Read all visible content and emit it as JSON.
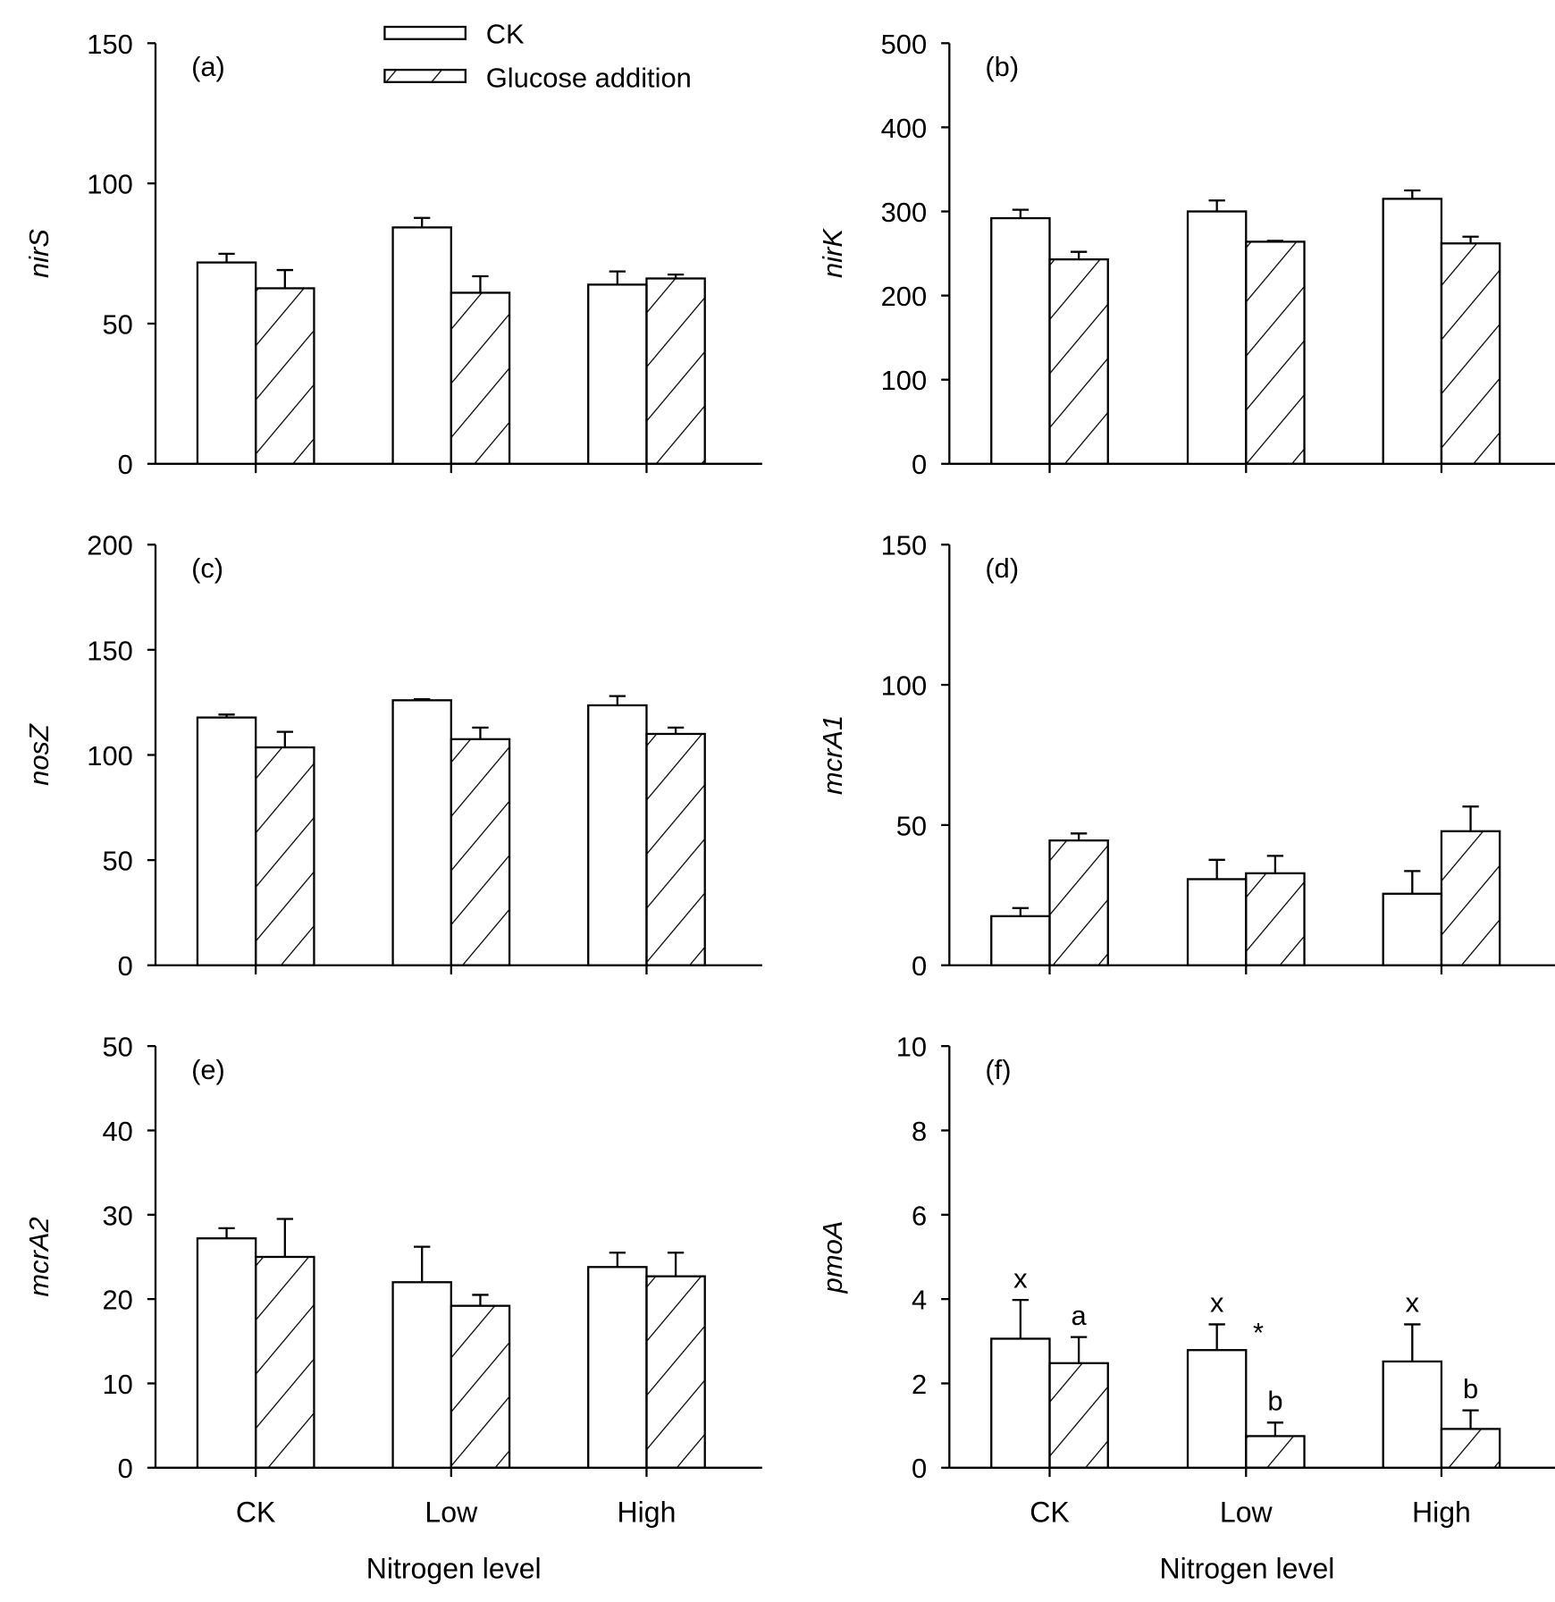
{
  "chart_data": {
    "type": "bar",
    "legend": {
      "position": "top",
      "entries": [
        "CK",
        "Glucose addition"
      ]
    },
    "categories": [
      "CK",
      "Low",
      "High"
    ],
    "xlabel": "Nitrogen level",
    "panels": [
      {
        "label": "(a)",
        "ylabel": "nirS",
        "ylim": [
          0,
          150
        ],
        "yticks": [
          0,
          50,
          100,
          150
        ],
        "series": [
          {
            "name": "CK",
            "values": [
              71.8,
              84.3,
              63.9
            ],
            "errors": [
              3.1,
              3.4,
              4.7
            ]
          },
          {
            "name": "Glucose addition",
            "values": [
              62.6,
              61.0,
              66.1
            ],
            "errors": [
              6.5,
              5.9,
              1.4
            ]
          }
        ],
        "annotations": []
      },
      {
        "label": "(b)",
        "ylabel": "nirK",
        "ylim": [
          0,
          500
        ],
        "yticks": [
          0,
          100,
          200,
          300,
          400,
          500
        ],
        "series": [
          {
            "name": "CK",
            "values": [
              292,
              300,
              315
            ],
            "errors": [
              10,
              13,
              10
            ]
          },
          {
            "name": "Glucose addition",
            "values": [
              243,
              264,
              262
            ],
            "errors": [
              9,
              1,
              8
            ]
          }
        ],
        "annotations": []
      },
      {
        "label": "(c)",
        "ylabel": "nosZ",
        "ylim": [
          0,
          200
        ],
        "yticks": [
          0,
          50,
          100,
          150,
          200
        ],
        "series": [
          {
            "name": "CK",
            "values": [
              117.8,
              126,
              123.6
            ],
            "errors": [
              1.4,
              0.5,
              4.4
            ]
          },
          {
            "name": "Glucose addition",
            "values": [
              103.6,
              107.5,
              110
            ],
            "errors": [
              7.4,
              5.5,
              3
            ]
          }
        ],
        "annotations": []
      },
      {
        "label": "(d)",
        "ylabel": "mcrA1",
        "ylim": [
          0,
          150
        ],
        "yticks": [
          0,
          50,
          100,
          150
        ],
        "series": [
          {
            "name": "CK",
            "values": [
              17.5,
              30.7,
              25.5
            ],
            "errors": [
              2.9,
              6.9,
              8.1
            ]
          },
          {
            "name": "Glucose addition",
            "values": [
              44.5,
              32.8,
              47.8
            ],
            "errors": [
              2.5,
              6.2,
              8.8
            ]
          }
        ],
        "annotations": []
      },
      {
        "label": "(e)",
        "ylabel": "mcrA2",
        "ylim": [
          0,
          50
        ],
        "yticks": [
          0,
          10,
          20,
          30,
          40,
          50
        ],
        "series": [
          {
            "name": "CK",
            "values": [
              27.2,
              22,
              23.8
            ],
            "errors": [
              1.2,
              4.2,
              1.7
            ]
          },
          {
            "name": "Glucose addition",
            "values": [
              25,
              19.2,
              22.7
            ],
            "errors": [
              4.5,
              1.3,
              2.8
            ]
          }
        ],
        "annotations": []
      },
      {
        "label": "(f)",
        "ylabel": "pmoA",
        "ylim": [
          0,
          10
        ],
        "yticks": [
          0,
          2,
          4,
          6,
          8,
          10
        ],
        "series": [
          {
            "name": "CK",
            "values": [
              3.06,
              2.79,
              2.52
            ],
            "errors": [
              0.92,
              0.61,
              0.88
            ]
          },
          {
            "name": "Glucose addition",
            "values": [
              2.48,
              0.75,
              0.92
            ],
            "errors": [
              0.62,
              0.32,
              0.44
            ]
          }
        ],
        "annotations": [
          {
            "text": "x",
            "category": "CK",
            "series": "CK"
          },
          {
            "text": "a",
            "category": "CK",
            "series": "Glucose addition"
          },
          {
            "text": "x",
            "category": "Low",
            "series": "CK"
          },
          {
            "text": "*",
            "category": "Low",
            "series": "star"
          },
          {
            "text": "b",
            "category": "Low",
            "series": "Glucose addition"
          },
          {
            "text": "x",
            "category": "High",
            "series": "CK"
          },
          {
            "text": "b",
            "category": "High",
            "series": "Glucose addition"
          }
        ]
      }
    ]
  }
}
